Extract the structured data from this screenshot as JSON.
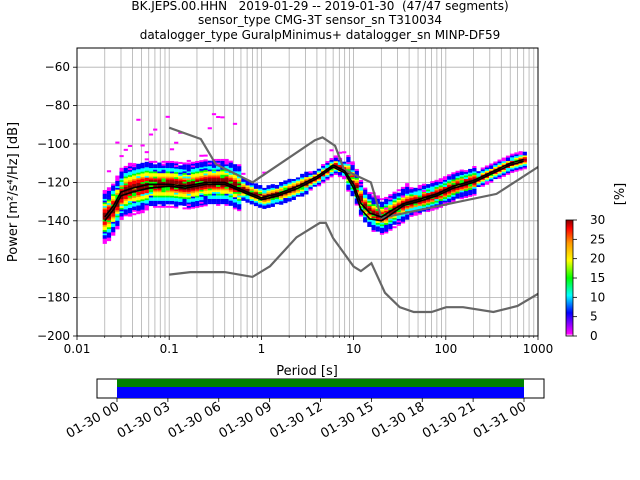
{
  "title_lines": [
    "BK.JEPS.00.HHN   2019-01-29 -- 2019-01-30  (47/47 segments)",
    "sensor_type CMG-3T sensor_sn T310034",
    "datalogger_type GuralpMinimus+ datalogger_sn MINP-DF59"
  ],
  "chart_data": {
    "type": "heatmap",
    "xlabel": "Period [s]",
    "ylabel": "Power [m²/s⁴/Hz] [dB]",
    "x_scale": "log",
    "xlim": [
      0.01,
      1000
    ],
    "ylim": [
      -200,
      -50
    ],
    "x_ticks": [
      0.01,
      0.1,
      1,
      10,
      100,
      1000
    ],
    "x_tick_labels": [
      "0.01",
      "0.1",
      "1",
      "10",
      "100",
      "1000"
    ],
    "y_ticks": [
      -200,
      -180,
      -160,
      -140,
      -120,
      -100,
      -80,
      -60
    ],
    "y_tick_labels": [
      "−200",
      "−180",
      "−160",
      "−140",
      "−120",
      "−100",
      "−80",
      "−60"
    ],
    "grid": true,
    "colorbar": {
      "label": "[%]",
      "min": 0,
      "max": 30,
      "ticks": [
        0,
        5,
        10,
        15,
        20,
        25,
        30
      ],
      "tick_labels": [
        "0",
        "5",
        "10",
        "15",
        "20",
        "25",
        "30"
      ],
      "colors": [
        "#ffffff",
        "#ff00ff",
        "#0000ff",
        "#00ffff",
        "#00ff00",
        "#ffff00",
        "#ff9900",
        "#ff0000",
        "#880000"
      ]
    },
    "noise_models": {
      "nhnm": {
        "periods": [
          0.1,
          0.22,
          0.32,
          0.8,
          3.8,
          4.6,
          6.3,
          7.9,
          15.4,
          20,
          354.8,
          1000
        ],
        "db": [
          -91.5,
          -97.4,
          -110.5,
          -120,
          -98,
          -96.5,
          -101,
          -113.5,
          -120,
          -138.5,
          -126,
          -112
        ]
      },
      "nlnm": {
        "periods": [
          0.1,
          0.17,
          0.4,
          0.8,
          1.24,
          2.4,
          4.3,
          5,
          6,
          10,
          12,
          15.6,
          21.9,
          31.6,
          45,
          70,
          101,
          154,
          328,
          600,
          1000
        ],
        "db": [
          -168,
          -166.7,
          -166.7,
          -169.2,
          -163.7,
          -148.6,
          -141.1,
          -141.1,
          -149,
          -163.8,
          -166.2,
          -162.1,
          -177.5,
          -185,
          -187.5,
          -187.5,
          -185,
          -185,
          -187.5,
          -184.4,
          -178
        ]
      }
    },
    "mean_curve": {
      "periods": [
        0.02,
        0.025,
        0.03,
        0.04,
        0.06,
        0.1,
        0.15,
        0.25,
        0.4,
        0.7,
        1,
        1.5,
        2.5,
        4,
        6,
        8,
        10,
        12,
        15,
        20,
        25,
        35,
        50,
        80,
        120,
        200,
        300,
        500,
        700
      ],
      "db": [
        -138,
        -132,
        -125,
        -123,
        -121,
        -121,
        -122,
        -120,
        -120,
        -125,
        -128,
        -126,
        -122,
        -117,
        -111,
        -114,
        -121,
        -131,
        -136,
        -138,
        -135,
        -131,
        -129,
        -126,
        -122,
        -119,
        -115,
        -110,
        -108
      ]
    },
    "mode_curve": {
      "periods": [
        0.02,
        0.025,
        0.03,
        0.04,
        0.06,
        0.1,
        0.15,
        0.25,
        0.4,
        0.7,
        1,
        1.5,
        2.5,
        4,
        6,
        8,
        10,
        12,
        15,
        20,
        25,
        35,
        50,
        80,
        120,
        200,
        300,
        500,
        700
      ],
      "db": [
        -140,
        -134,
        -127,
        -125,
        -123,
        -122,
        -123,
        -121,
        -121,
        -126,
        -129,
        -127,
        -123,
        -118,
        -112,
        -115,
        -123,
        -134,
        -139,
        -140,
        -137,
        -132,
        -130,
        -127,
        -123,
        -120,
        -116,
        -111,
        -109
      ]
    }
  },
  "time_axis": {
    "tick_labels": [
      "01-30 00",
      "01-30 03",
      "01-30 06",
      "01-30 09",
      "01-30 12",
      "01-30 15",
      "01-30 18",
      "01-30 21",
      "01-31 00"
    ],
    "coverage_colors": {
      "data": "#0000ff",
      "gapless": "#008000",
      "background": "#ffffff"
    }
  }
}
